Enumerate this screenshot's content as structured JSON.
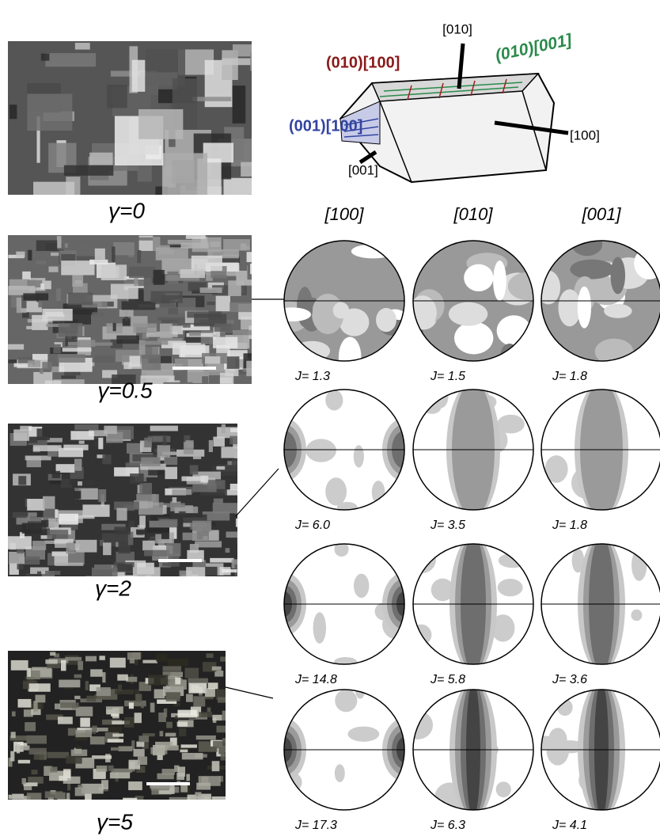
{
  "crystal": {
    "axis_010": "[010]",
    "plane_010_001": "(010)[001]",
    "plane_010_100": "(010)[100]",
    "plane_001_100": "(001)[100]",
    "axis_100": "[100]",
    "axis_001": "[001]"
  },
  "strain_labels": [
    "γ=0",
    "γ=0.5",
    "γ=2",
    "γ=5"
  ],
  "pole_figures": {
    "columns": [
      "[100]",
      "[010]",
      "[001]"
    ],
    "rows": [
      {
        "j": [
          "J= 1.3",
          "J= 1.5",
          "J= 1.8"
        ]
      },
      {
        "j": [
          "J= 6.0",
          "J= 3.5",
          "J= 1.8"
        ]
      },
      {
        "j": [
          "J= 14.8",
          "J= 5.8",
          "J= 3.6"
        ]
      },
      {
        "j": [
          "J= 17.3",
          "J= 6.3",
          "J= 4.1"
        ]
      }
    ]
  }
}
